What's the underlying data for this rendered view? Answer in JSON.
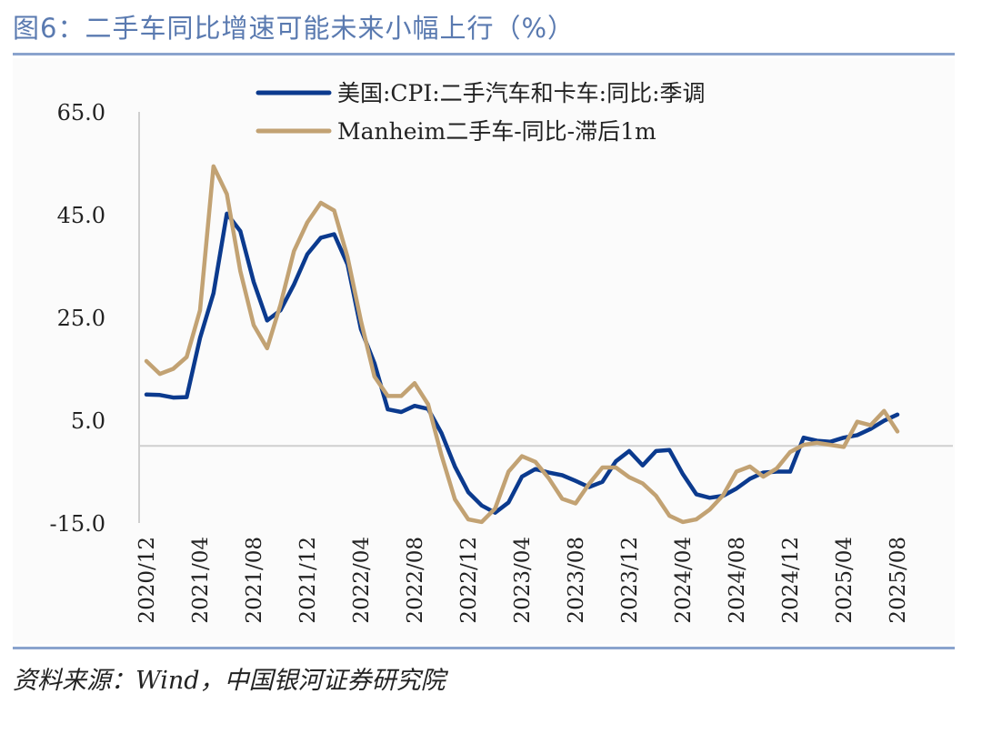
{
  "figure": {
    "title": "图6：二手车同比增速可能未来小幅上行（%）",
    "source": "资料来源：Wind，中国银河证券研究院"
  },
  "colors": {
    "accent_rule": "#8aa3cd",
    "title": "#5a7ab0",
    "series_cpi": "#0b3a8e",
    "series_manheim": "#c2a273",
    "axis": "#cfcfcf"
  },
  "chart_data": {
    "type": "line",
    "ylim": [
      -15,
      65
    ],
    "yticks": [
      -15,
      5,
      25,
      45,
      65
    ],
    "ytick_labels": [
      "-15.0",
      "5.0",
      "25.0",
      "45.0",
      "65.0"
    ],
    "xlabels": [
      "2020/12",
      "2021/04",
      "2021/08",
      "2021/12",
      "2022/04",
      "2022/08",
      "2022/12",
      "2023/04",
      "2023/08",
      "2023/12",
      "2024/04",
      "2024/08",
      "2024/12",
      "2025/04",
      "2025/08"
    ],
    "x": [
      "2020/12",
      "2021/01",
      "2021/02",
      "2021/03",
      "2021/04",
      "2021/05",
      "2021/06",
      "2021/07",
      "2021/08",
      "2021/09",
      "2021/10",
      "2021/11",
      "2021/12",
      "2022/01",
      "2022/02",
      "2022/03",
      "2022/04",
      "2022/05",
      "2022/06",
      "2022/07",
      "2022/08",
      "2022/09",
      "2022/10",
      "2022/11",
      "2022/12",
      "2023/01",
      "2023/02",
      "2023/03",
      "2023/04",
      "2023/05",
      "2023/06",
      "2023/07",
      "2023/08",
      "2023/09",
      "2023/10",
      "2023/11",
      "2023/12",
      "2024/01",
      "2024/02",
      "2024/03",
      "2024/04",
      "2024/05",
      "2024/06",
      "2024/07",
      "2024/08",
      "2024/09",
      "2024/10",
      "2024/11",
      "2024/12",
      "2025/01",
      "2025/02",
      "2025/03",
      "2025/04",
      "2025/05",
      "2025/06",
      "2025/07",
      "2025/08"
    ],
    "legend": [
      "美国:CPI:二手汽车和卡车:同比:季调",
      "Manheim二手车-同比-滞后1m"
    ],
    "legend_position": "top-center",
    "series": [
      {
        "name": "美国:CPI:二手汽车和卡车:同比:季调",
        "color": "#0b3a8e",
        "values": [
          10.0,
          9.9,
          9.4,
          9.5,
          21.0,
          29.7,
          45.2,
          41.8,
          31.9,
          24.4,
          26.4,
          31.4,
          37.3,
          40.5,
          41.2,
          35.3,
          22.7,
          16.1,
          7.1,
          6.6,
          7.8,
          7.2,
          2.5,
          -4.0,
          -9.0,
          -11.6,
          -13.0,
          -11.0,
          -6.0,
          -4.5,
          -5.2,
          -5.7,
          -6.8,
          -8.0,
          -7.0,
          -3.0,
          -1.0,
          -3.8,
          -1.0,
          -0.8,
          -5.5,
          -9.4,
          -10.1,
          -9.7,
          -8.3,
          -6.4,
          -5.2,
          -5.0,
          -5.0,
          1.6,
          1.0,
          0.8,
          1.6,
          2.1,
          3.3,
          4.9,
          6.1
        ]
      },
      {
        "name": "Manheim二手车-同比-滞后1m",
        "color": "#c2a273",
        "values": [
          16.5,
          14.0,
          15.0,
          17.3,
          26.4,
          54.4,
          49.0,
          34.0,
          23.5,
          19.0,
          27.5,
          37.9,
          43.5,
          47.3,
          45.8,
          36.7,
          24.3,
          13.5,
          9.7,
          9.7,
          12.2,
          8.1,
          -1.8,
          -10.4,
          -14.3,
          -14.8,
          -12.2,
          -5.0,
          -2.0,
          -3.1,
          -6.3,
          -10.3,
          -11.2,
          -7.4,
          -4.2,
          -4.2,
          -6.1,
          -7.3,
          -9.7,
          -13.6,
          -14.8,
          -14.3,
          -12.4,
          -9.6,
          -5.0,
          -4.0,
          -6.0,
          -4.4,
          -1.2,
          0.2,
          0.6,
          0.2,
          -0.2,
          4.7,
          4.0,
          6.8,
          2.8
        ]
      }
    ]
  }
}
